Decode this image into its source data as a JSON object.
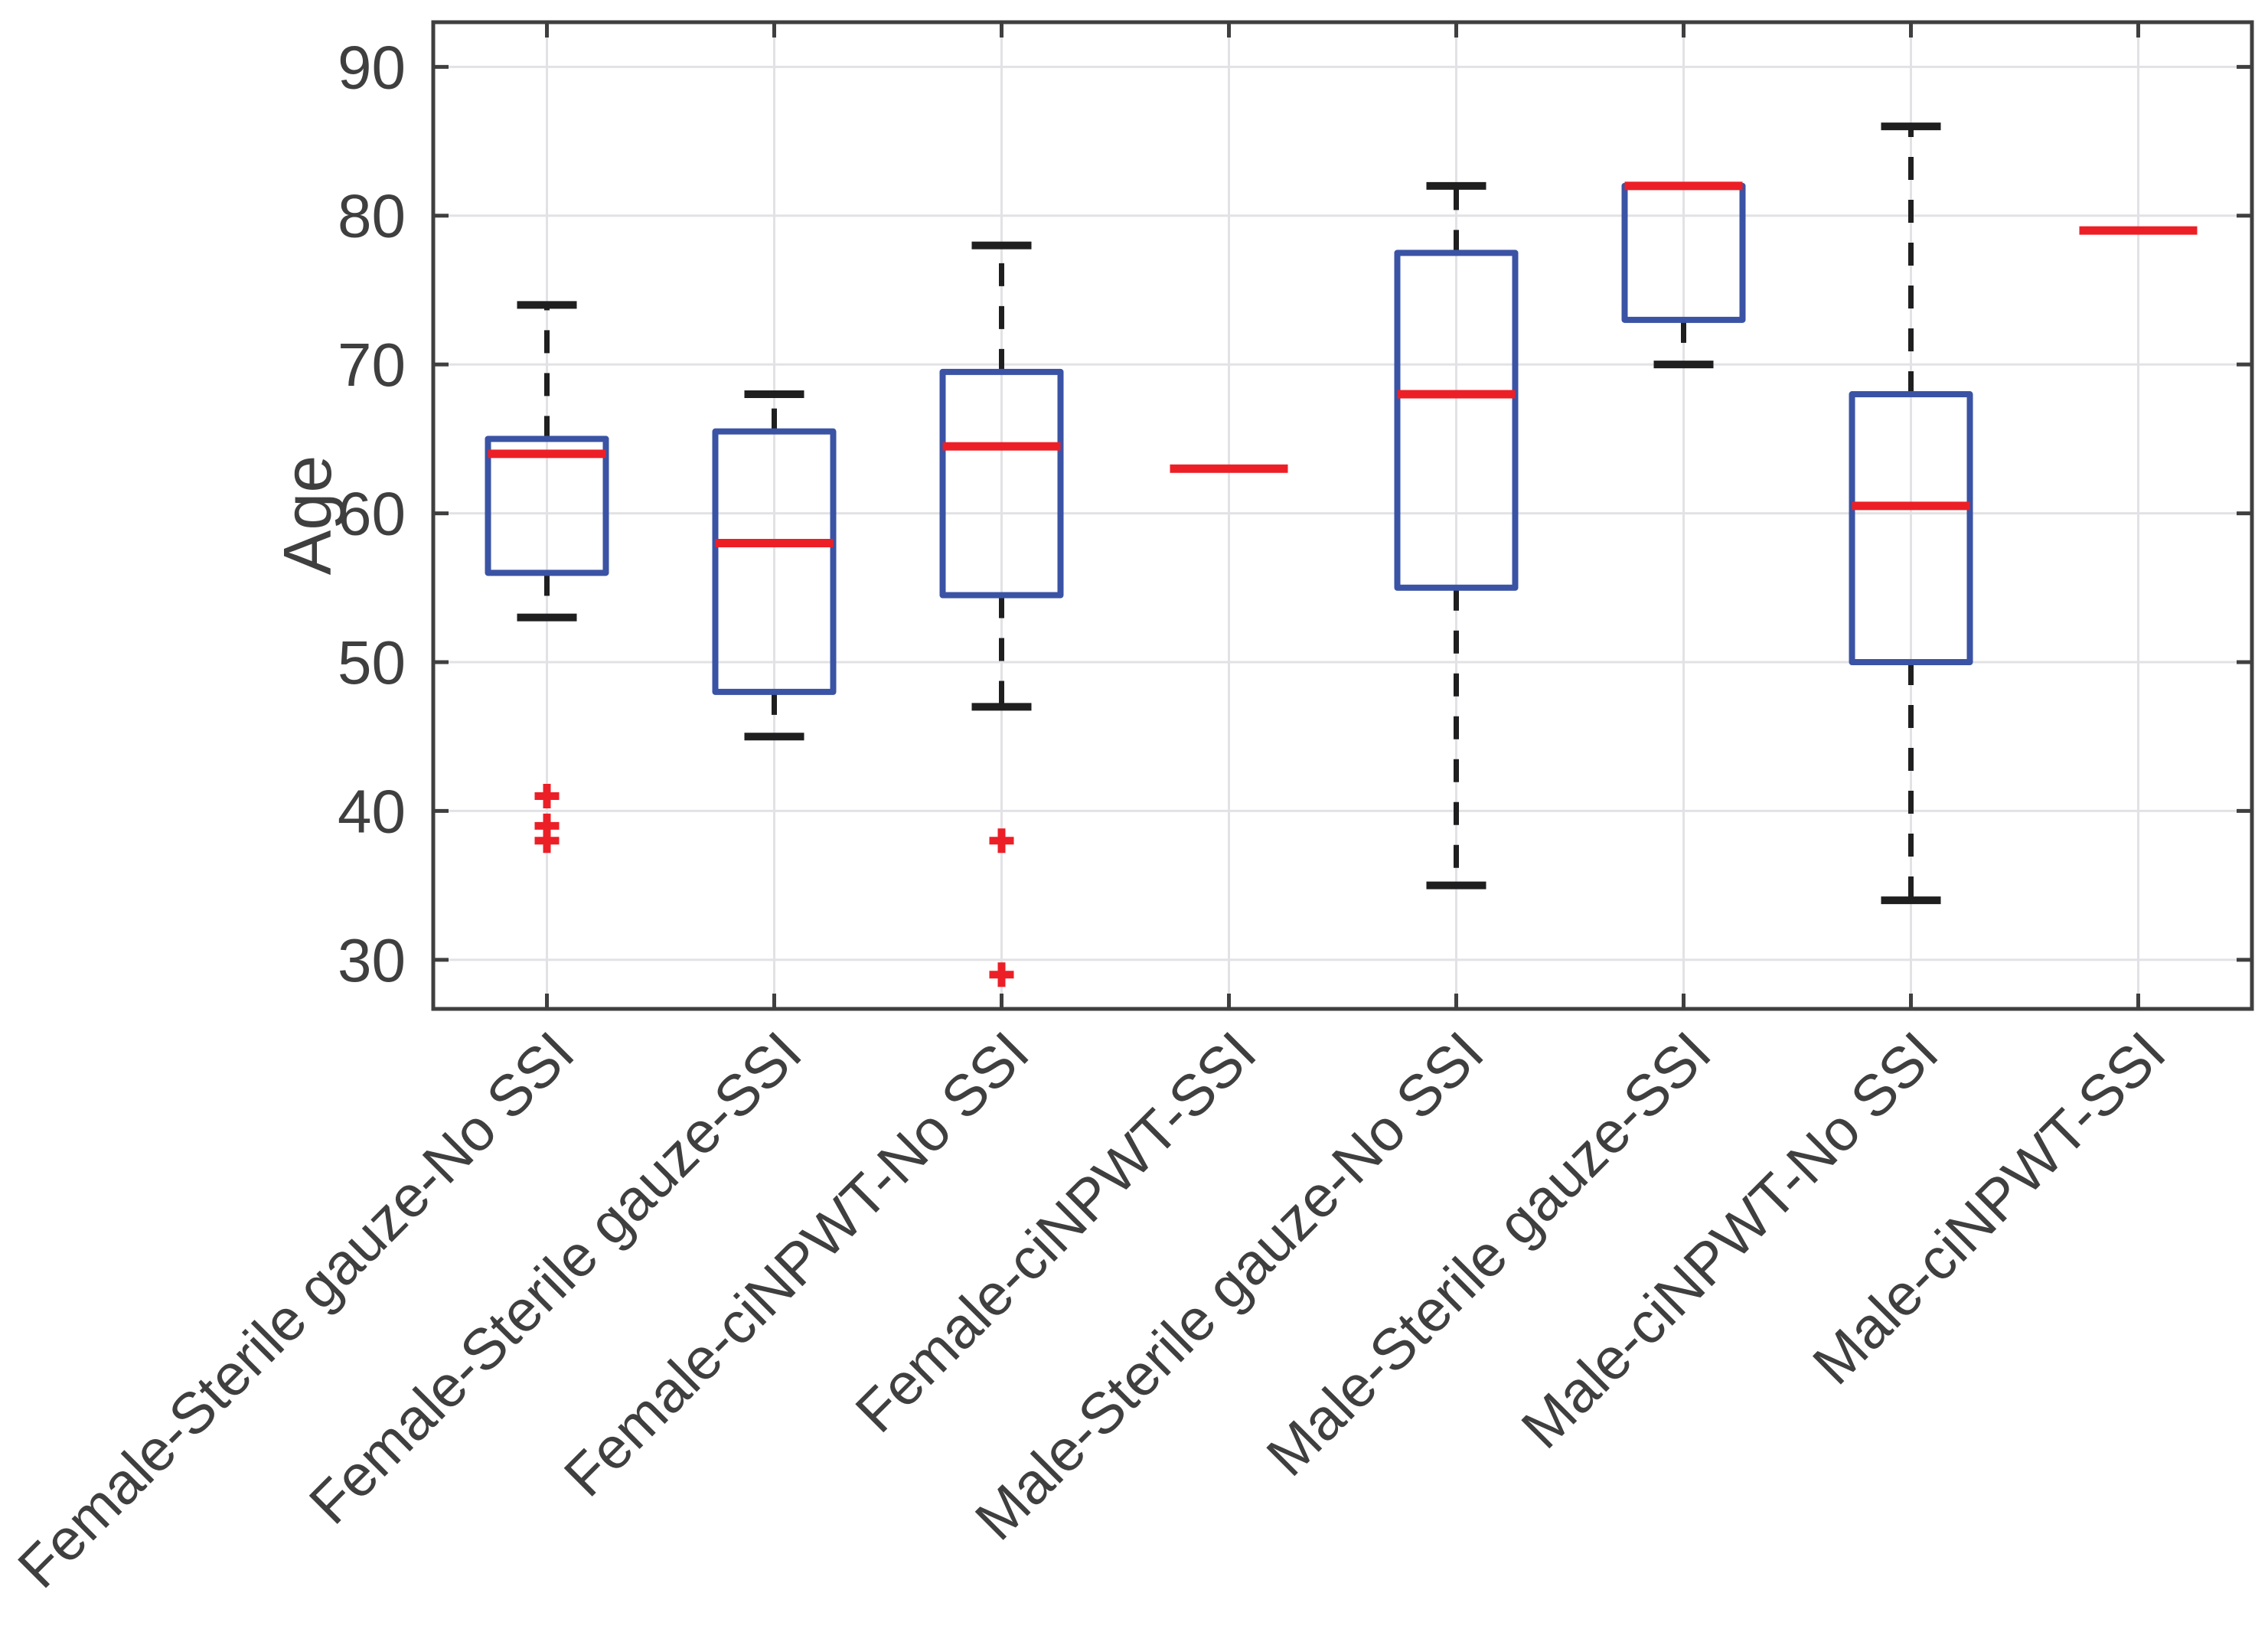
{
  "chart_data": {
    "type": "boxplot",
    "title": "",
    "xlabel": "",
    "ylabel": "Age",
    "yticks": [
      30,
      40,
      50,
      60,
      70,
      80,
      90
    ],
    "ylim": [
      26.7,
      93
    ],
    "grid": true,
    "legend": "none",
    "categories": [
      "Female-Sterile gauze-No SSI",
      "Female-Sterile gauze-SSI",
      "Female-ciNPWT-No SSI",
      "Female-ciNPWT-SSI",
      "Male-Sterile gauze-No SSI",
      "Male-Sterile gauze-SSI",
      "Male-ciNPWT-No SSI",
      "Male-ciNPWT-SSI"
    ],
    "series": [
      {
        "label": "Female-Sterile gauze-No SSI",
        "whisker_low": 53,
        "q1": 56,
        "median": 64,
        "q3": 65,
        "whisker_high": 74,
        "outliers": [
          41,
          39,
          38
        ]
      },
      {
        "label": "Female-Sterile gauze-SSI",
        "whisker_low": 45,
        "q1": 48,
        "median": 58,
        "q3": 65.5,
        "whisker_high": 68,
        "outliers": []
      },
      {
        "label": "Female-ciNPWT-No SSI",
        "whisker_low": 47,
        "q1": 54.5,
        "median": 64.5,
        "q3": 69.5,
        "whisker_high": 78,
        "outliers": [
          38,
          29
        ]
      },
      {
        "label": "Female-ciNPWT-SSI",
        "whisker_low": 63,
        "q1": 63,
        "median": 63,
        "q3": 63,
        "whisker_high": 63,
        "outliers": []
      },
      {
        "label": "Male-Sterile gauze-No SSI",
        "whisker_low": 35,
        "q1": 55,
        "median": 68,
        "q3": 77.5,
        "whisker_high": 82,
        "outliers": []
      },
      {
        "label": "Male-Sterile gauze-SSI",
        "whisker_low": 70,
        "q1": 73,
        "median": 82,
        "q3": 82,
        "whisker_high": 82,
        "outliers": []
      },
      {
        "label": "Male-ciNPWT-No SSI",
        "whisker_low": 34,
        "q1": 50,
        "median": 60.5,
        "q3": 68,
        "whisker_high": 86,
        "outliers": []
      },
      {
        "label": "Male-ciNPWT-SSI",
        "whisker_low": 79,
        "q1": 79,
        "median": 79,
        "q3": 79,
        "whisker_high": 79,
        "outliers": []
      }
    ],
    "colors": {
      "box": "#3A53A4",
      "median": "#EC1F27",
      "whisker": "#1F1F1F",
      "outlier": "#EC1F27",
      "grid": "#E2E2E6",
      "axis": "#3F3F3F",
      "text": "#3F3F3F",
      "background": "#FFFFFF"
    }
  }
}
